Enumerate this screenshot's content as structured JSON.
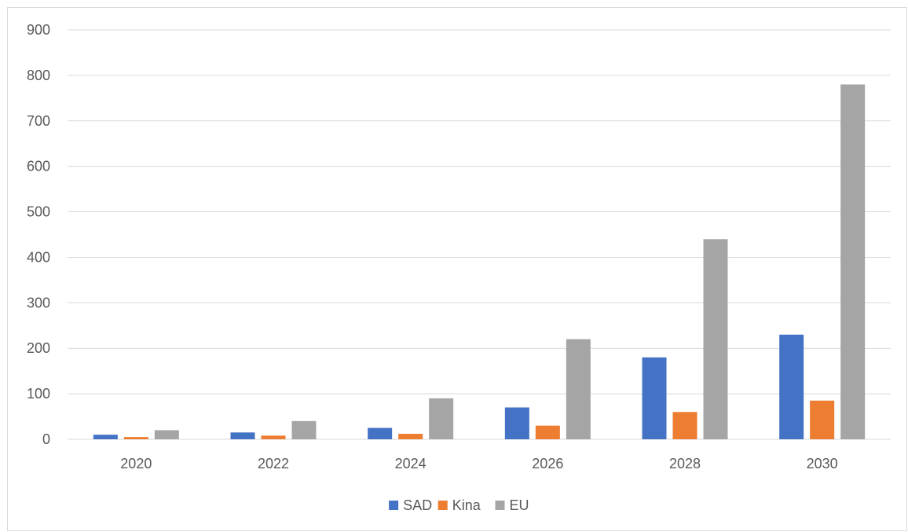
{
  "chart_data": {
    "type": "bar",
    "title": "",
    "xlabel": "",
    "ylabel": "",
    "categories": [
      "2020",
      "2022",
      "2024",
      "2026",
      "2028",
      "2030"
    ],
    "series": [
      {
        "name": "SAD",
        "color": "#4472c4",
        "values": [
          10,
          15,
          25,
          70,
          180,
          230
        ]
      },
      {
        "name": "Kina",
        "color": "#ed7d31",
        "values": [
          5,
          8,
          12,
          30,
          60,
          85
        ]
      },
      {
        "name": "EU",
        "color": "#a5a5a5",
        "values": [
          20,
          40,
          90,
          220,
          440,
          780
        ]
      }
    ],
    "ylim": [
      0,
      900
    ],
    "yticks": [
      "0",
      "100",
      "200",
      "300",
      "400",
      "500",
      "600",
      "700",
      "800",
      "900"
    ],
    "grid": true,
    "legend_position": "bottom"
  }
}
